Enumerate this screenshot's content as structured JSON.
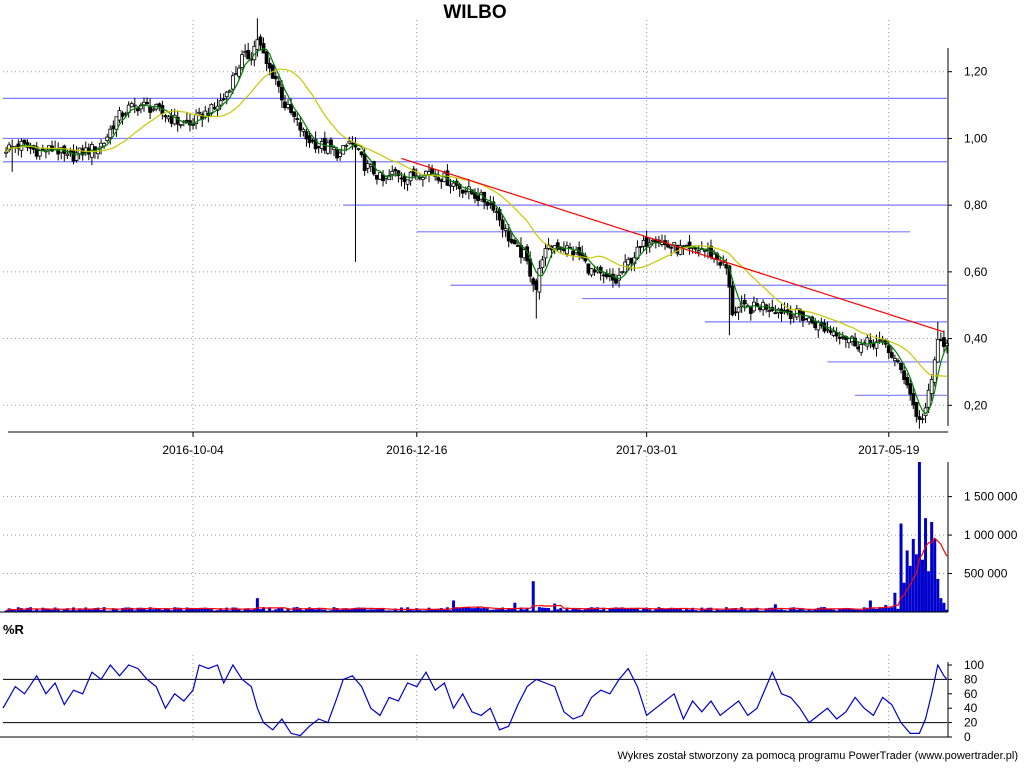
{
  "chart_data": {
    "title": "WILBO",
    "price_panel": {
      "type": "candlestick",
      "y_ticks": [
        "1,20",
        "1,00",
        "0,80",
        "0,60",
        "0,40",
        "0,20"
      ],
      "y_values": [
        1.2,
        1.0,
        0.8,
        0.6,
        0.4,
        0.2
      ],
      "ylim": [
        0.12,
        1.34
      ],
      "x_ticks": [
        {
          "label": "2016-10-04",
          "day": 53
        },
        {
          "label": "2016-12-16",
          "day": 126
        },
        {
          "label": "2017-03-01",
          "day": 201
        },
        {
          "label": "2017-05-19",
          "day": 280
        }
      ],
      "x_range_days": [
        -9,
        299
      ],
      "close_path": [
        [
          -8,
          0.97
        ],
        [
          -3,
          0.98
        ],
        [
          3,
          0.96
        ],
        [
          8,
          0.97
        ],
        [
          12,
          0.94
        ],
        [
          17,
          0.96
        ],
        [
          21,
          0.97
        ],
        [
          24,
          0.99
        ],
        [
          28,
          1.06
        ],
        [
          32,
          1.09
        ],
        [
          36,
          1.1
        ],
        [
          40,
          1.09
        ],
        [
          44,
          1.07
        ],
        [
          48,
          1.05
        ],
        [
          52,
          1.04
        ],
        [
          56,
          1.07
        ],
        [
          60,
          1.09
        ],
        [
          63,
          1.12
        ],
        [
          66,
          1.18
        ],
        [
          69,
          1.24
        ],
        [
          72,
          1.25
        ],
        [
          74,
          1.3
        ],
        [
          77,
          1.22
        ],
        [
          80,
          1.18
        ],
        [
          83,
          1.1
        ],
        [
          86,
          1.06
        ],
        [
          90,
          1.0
        ],
        [
          94,
          0.98
        ],
        [
          98,
          0.97
        ],
        [
          101,
          0.95
        ],
        [
          104,
          0.99
        ],
        [
          106,
          0.97
        ],
        [
          109,
          0.92
        ],
        [
          112,
          0.9
        ],
        [
          115,
          0.87
        ],
        [
          119,
          0.9
        ],
        [
          123,
          0.88
        ],
        [
          127,
          0.9
        ],
        [
          131,
          0.9
        ],
        [
          135,
          0.88
        ],
        [
          139,
          0.86
        ],
        [
          143,
          0.84
        ],
        [
          147,
          0.82
        ],
        [
          151,
          0.8
        ],
        [
          155,
          0.72
        ],
        [
          158,
          0.67
        ],
        [
          161,
          0.65
        ],
        [
          163,
          0.6
        ],
        [
          165,
          0.55
        ],
        [
          167,
          0.65
        ],
        [
          171,
          0.68
        ],
        [
          175,
          0.67
        ],
        [
          179,
          0.65
        ],
        [
          183,
          0.6
        ],
        [
          187,
          0.58
        ],
        [
          191,
          0.57
        ],
        [
          195,
          0.63
        ],
        [
          199,
          0.67
        ],
        [
          203,
          0.71
        ],
        [
          207,
          0.68
        ],
        [
          211,
          0.67
        ],
        [
          215,
          0.66
        ],
        [
          219,
          0.67
        ],
        [
          223,
          0.65
        ],
        [
          227,
          0.61
        ],
        [
          229,
          0.48
        ],
        [
          231,
          0.49
        ],
        [
          235,
          0.49
        ],
        [
          239,
          0.5
        ],
        [
          243,
          0.49
        ],
        [
          247,
          0.48
        ],
        [
          251,
          0.47
        ],
        [
          255,
          0.45
        ],
        [
          259,
          0.43
        ],
        [
          263,
          0.42
        ],
        [
          267,
          0.4
        ],
        [
          271,
          0.38
        ],
        [
          275,
          0.39
        ],
        [
          279,
          0.38
        ],
        [
          283,
          0.32
        ],
        [
          286,
          0.27
        ],
        [
          288,
          0.2
        ],
        [
          290,
          0.15
        ],
        [
          292,
          0.19
        ],
        [
          294,
          0.27
        ],
        [
          296,
          0.4
        ],
        [
          298,
          0.37
        ],
        [
          299,
          0.4
        ]
      ],
      "extremes": [
        {
          "day": -6,
          "low": 0.9
        },
        {
          "day": 74,
          "high": 1.36
        },
        {
          "day": 106,
          "low": 0.63
        },
        {
          "day": 165,
          "low": 0.46
        },
        {
          "day": 228,
          "low": 0.41
        },
        {
          "day": 290,
          "low": 0.13
        },
        {
          "day": 296,
          "high": 0.45
        }
      ],
      "moving_averages": [
        {
          "color": "#008000",
          "period": "short"
        },
        {
          "color": "#c8c800",
          "period": "long"
        }
      ],
      "support_resistance_lines": [
        {
          "value": 1.12,
          "from_day": -9,
          "to_day": 299
        },
        {
          "value": 1.0,
          "from_day": -9,
          "to_day": 299
        },
        {
          "value": 0.93,
          "from_day": -9,
          "to_day": 299
        },
        {
          "value": 0.8,
          "from_day": 102,
          "to_day": 299
        },
        {
          "value": 0.72,
          "from_day": 126,
          "to_day": 287
        },
        {
          "value": 0.56,
          "from_day": 137,
          "to_day": 299
        },
        {
          "value": 0.52,
          "from_day": 180,
          "to_day": 299
        },
        {
          "value": 0.45,
          "from_day": 220,
          "to_day": 299
        },
        {
          "value": 0.33,
          "from_day": 260,
          "to_day": 299
        },
        {
          "value": 0.23,
          "from_day": 269,
          "to_day": 299
        }
      ],
      "trend_line": {
        "color": "#ff0000",
        "from": [
          121,
          0.94
        ],
        "to": [
          298,
          0.42
        ]
      }
    },
    "volume_panel": {
      "type": "bar",
      "y_ticks": [
        "1 500 000",
        "1 000 000",
        "500 000"
      ],
      "y_values": [
        1500000,
        1000000,
        500000
      ],
      "ylim": [
        0,
        1950000
      ],
      "bar_color": "#0000cc",
      "avg_color": "#ff0000",
      "spikes": [
        {
          "day": 74,
          "value": 180000
        },
        {
          "day": 138,
          "value": 150000
        },
        {
          "day": 158,
          "value": 120000
        },
        {
          "day": 164,
          "value": 400000
        },
        {
          "day": 171,
          "value": 110000
        },
        {
          "day": 243,
          "value": 100000
        },
        {
          "day": 274,
          "value": 150000
        },
        {
          "day": 279,
          "value": 90000
        },
        {
          "day": 282,
          "value": 250000
        },
        {
          "day": 284,
          "value": 1150000
        },
        {
          "day": 285,
          "value": 380000
        },
        {
          "day": 286,
          "value": 800000
        },
        {
          "day": 287,
          "value": 600000
        },
        {
          "day": 288,
          "value": 950000
        },
        {
          "day": 289,
          "value": 750000
        },
        {
          "day": 290,
          "value": 1950000
        },
        {
          "day": 291,
          "value": 680000
        },
        {
          "day": 292,
          "value": 1220000
        },
        {
          "day": 293,
          "value": 530000
        },
        {
          "day": 294,
          "value": 1170000
        },
        {
          "day": 295,
          "value": 950000
        },
        {
          "day": 296,
          "value": 430000
        },
        {
          "day": 297,
          "value": 180000
        },
        {
          "day": 298,
          "value": 120000
        }
      ],
      "base_volume": 40000
    },
    "williams_r_panel": {
      "label": "%R",
      "y_ticks": [
        "100",
        "80",
        "60",
        "40",
        "20",
        "0"
      ],
      "y_values": [
        100,
        80,
        60,
        40,
        20,
        0
      ],
      "ylim": [
        0,
        100
      ],
      "reference_lines": [
        80,
        20
      ],
      "line_color": "#0000cc",
      "path": [
        [
          -9,
          40
        ],
        [
          -5,
          70
        ],
        [
          -2,
          60
        ],
        [
          2,
          85
        ],
        [
          5,
          60
        ],
        [
          8,
          75
        ],
        [
          11,
          45
        ],
        [
          14,
          65
        ],
        [
          17,
          60
        ],
        [
          20,
          90
        ],
        [
          23,
          80
        ],
        [
          26,
          100
        ],
        [
          29,
          85
        ],
        [
          32,
          100
        ],
        [
          35,
          95
        ],
        [
          38,
          80
        ],
        [
          41,
          70
        ],
        [
          44,
          40
        ],
        [
          47,
          60
        ],
        [
          50,
          50
        ],
        [
          53,
          65
        ],
        [
          55,
          100
        ],
        [
          58,
          95
        ],
        [
          61,
          100
        ],
        [
          63,
          75
        ],
        [
          66,
          100
        ],
        [
          69,
          80
        ],
        [
          72,
          70
        ],
        [
          74,
          40
        ],
        [
          76,
          20
        ],
        [
          79,
          10
        ],
        [
          82,
          25
        ],
        [
          85,
          5
        ],
        [
          88,
          2
        ],
        [
          91,
          15
        ],
        [
          94,
          25
        ],
        [
          97,
          20
        ],
        [
          100,
          55
        ],
        [
          102,
          80
        ],
        [
          105,
          85
        ],
        [
          108,
          70
        ],
        [
          111,
          40
        ],
        [
          114,
          30
        ],
        [
          117,
          55
        ],
        [
          120,
          50
        ],
        [
          123,
          75
        ],
        [
          126,
          70
        ],
        [
          129,
          90
        ],
        [
          132,
          65
        ],
        [
          135,
          75
        ],
        [
          138,
          40
        ],
        [
          141,
          60
        ],
        [
          144,
          35
        ],
        [
          147,
          30
        ],
        [
          150,
          40
        ],
        [
          153,
          10
        ],
        [
          156,
          15
        ],
        [
          159,
          45
        ],
        [
          162,
          70
        ],
        [
          165,
          80
        ],
        [
          168,
          75
        ],
        [
          171,
          70
        ],
        [
          174,
          35
        ],
        [
          177,
          25
        ],
        [
          180,
          30
        ],
        [
          183,
          55
        ],
        [
          186,
          65
        ],
        [
          189,
          60
        ],
        [
          192,
          80
        ],
        [
          195,
          95
        ],
        [
          198,
          70
        ],
        [
          201,
          30
        ],
        [
          204,
          40
        ],
        [
          207,
          50
        ],
        [
          210,
          60
        ],
        [
          213,
          25
        ],
        [
          216,
          50
        ],
        [
          219,
          35
        ],
        [
          222,
          50
        ],
        [
          225,
          30
        ],
        [
          228,
          40
        ],
        [
          231,
          50
        ],
        [
          234,
          30
        ],
        [
          237,
          40
        ],
        [
          240,
          70
        ],
        [
          242,
          90
        ],
        [
          245,
          60
        ],
        [
          248,
          55
        ],
        [
          251,
          40
        ],
        [
          254,
          20
        ],
        [
          257,
          30
        ],
        [
          260,
          40
        ],
        [
          263,
          25
        ],
        [
          266,
          35
        ],
        [
          269,
          55
        ],
        [
          272,
          40
        ],
        [
          275,
          30
        ],
        [
          278,
          55
        ],
        [
          281,
          45
        ],
        [
          284,
          20
        ],
        [
          287,
          5
        ],
        [
          290,
          5
        ],
        [
          292,
          25
        ],
        [
          294,
          60
        ],
        [
          296,
          100
        ],
        [
          298,
          85
        ],
        [
          299,
          80
        ]
      ]
    }
  },
  "footer": "Wykres został stworzony za pomocą programu PowerTrader (www.powertrader.pl)"
}
